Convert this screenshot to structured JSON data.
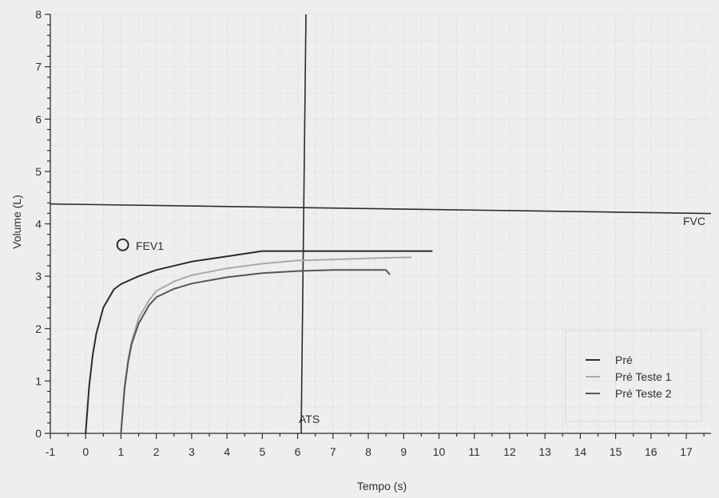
{
  "chart_data": {
    "type": "line",
    "xlabel": "Tempo (s)",
    "ylabel": "Volume (L)",
    "xlim": [
      -1,
      17.7
    ],
    "ylim": [
      0,
      8
    ],
    "x_ticks": [
      "-1",
      "0",
      "1",
      "2",
      "3",
      "4",
      "5",
      "6",
      "7",
      "8",
      "9",
      "10",
      "11",
      "12",
      "13",
      "14",
      "15",
      "16",
      "17"
    ],
    "y_ticks": [
      "0",
      "1",
      "2",
      "3",
      "4",
      "5",
      "6",
      "7",
      "8"
    ],
    "grid": true,
    "legend_position": "bottom-right",
    "series": [
      {
        "name": "Pré",
        "color": "#2b2b2b",
        "x": [
          0,
          0.1,
          0.2,
          0.3,
          0.5,
          0.8,
          1.0,
          1.5,
          2.0,
          3.0,
          4.0,
          5.0,
          7.0,
          9.0,
          9.8
        ],
        "y": [
          0,
          0.9,
          1.5,
          1.9,
          2.4,
          2.75,
          2.85,
          3.0,
          3.12,
          3.28,
          3.38,
          3.48,
          3.48,
          3.48,
          3.48
        ]
      },
      {
        "name": "Pré Teste 1",
        "color": "#a9a9a9",
        "x": [
          1,
          1.1,
          1.2,
          1.3,
          1.5,
          1.8,
          2.0,
          2.5,
          3.0,
          4.0,
          5.0,
          6.0,
          7.0,
          8.0,
          9.0,
          9.2
        ],
        "y": [
          0,
          0.9,
          1.4,
          1.75,
          2.2,
          2.55,
          2.72,
          2.9,
          3.02,
          3.15,
          3.24,
          3.3,
          3.32,
          3.34,
          3.36,
          3.36
        ]
      },
      {
        "name": "Pré Teste 2",
        "color": "#555555",
        "x": [
          1,
          1.1,
          1.2,
          1.3,
          1.5,
          1.8,
          2.0,
          2.5,
          3.0,
          4.0,
          5.0,
          6.0,
          7.0,
          8.0,
          8.5,
          8.6
        ],
        "y": [
          0,
          0.85,
          1.35,
          1.7,
          2.1,
          2.45,
          2.6,
          2.76,
          2.86,
          2.98,
          3.06,
          3.1,
          3.12,
          3.12,
          3.12,
          3.04
        ]
      }
    ],
    "annotations": {
      "fvc_label": "FVC",
      "fvc_value": 4.38,
      "ats_label": "ATS",
      "ats_time": 6.1,
      "fev1_label": "FEV1",
      "fev1_marker": {
        "x": 1.05,
        "y": 3.6
      }
    }
  }
}
